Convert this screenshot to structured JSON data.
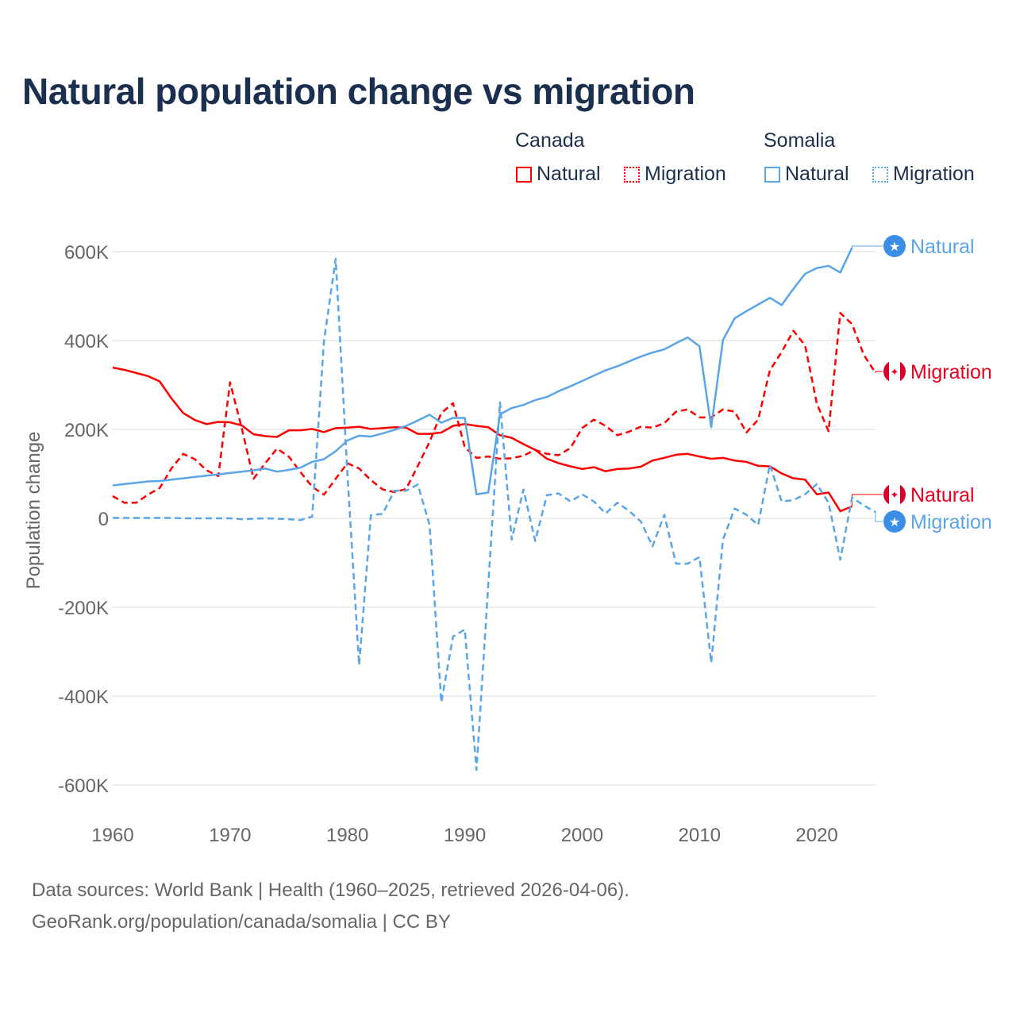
{
  "title": "Natural population change vs migration",
  "legend": {
    "groups": [
      {
        "name": "Canada",
        "items": [
          "Natural",
          "Migration"
        ]
      },
      {
        "name": "Somalia",
        "items": [
          "Natural",
          "Migration"
        ]
      }
    ]
  },
  "footer": {
    "line1": "Data sources: World Bank | Health (1960–2025, retrieved 2026-04-06).",
    "line2": "GeoRank.org/population/canada/somalia | CC BY"
  },
  "colors": {
    "canada": "#ff0000",
    "somalia": "#5aa5e8",
    "canada_flag": "#d80027",
    "somalia_flag": "#3a8ee6",
    "title": "#1b2f4e"
  },
  "chart_data": {
    "type": "line",
    "title": "Natural population change vs migration",
    "xlabel": "",
    "ylabel": "Population change",
    "xlim": [
      1960,
      2025
    ],
    "ylim": [
      -600000,
      600000
    ],
    "x_ticks": [
      "1960",
      "1970",
      "1980",
      "1990",
      "2000",
      "2010",
      "2020"
    ],
    "y_ticks": [
      "600K",
      "400K",
      "200K",
      "0",
      "-200K",
      "-400K",
      "-600K"
    ],
    "grid": true,
    "units": "thousands",
    "series": [
      {
        "name": "Natural",
        "country": "Canada",
        "end_label": "Natural",
        "style": "solid",
        "color": "#ff0000",
        "start_year": 1960,
        "values": [
          339,
          334,
          327,
          320,
          308,
          270,
          237,
          221,
          212,
          217,
          216,
          209,
          189,
          185,
          183,
          198,
          198,
          201,
          194,
          203,
          204,
          206,
          201,
          203,
          205,
          204,
          190,
          190,
          193,
          208,
          212,
          208,
          205,
          187,
          181,
          167,
          154,
          134,
          124,
          117,
          111,
          115,
          106,
          111,
          112,
          116,
          130,
          136,
          143,
          145,
          139,
          134,
          136,
          130,
          127,
          118,
          117,
          101,
          90,
          87,
          54,
          58,
          16,
          27
        ]
      },
      {
        "name": "Migration",
        "country": "Canada",
        "end_label": "Migration",
        "style": "dashed",
        "color": "#ff0000",
        "start_year": 1960,
        "values": [
          50,
          35,
          35,
          53,
          68,
          112,
          145,
          133,
          108,
          95,
          306,
          202,
          89,
          124,
          157,
          139,
          104,
          71,
          53,
          89,
          124,
          112,
          86,
          65,
          59,
          66,
          118,
          172,
          237,
          259,
          160,
          136,
          139,
          134,
          135,
          141,
          154,
          145,
          142,
          158,
          203,
          222,
          208,
          187,
          195,
          206,
          204,
          214,
          240,
          245,
          227,
          227,
          245,
          240,
          193,
          222,
          333,
          374,
          422,
          389,
          258,
          196,
          462,
          437,
          368,
          327
        ]
      },
      {
        "name": "Natural",
        "country": "Somalia",
        "end_label": "Natural",
        "style": "solid",
        "color": "#5aa5e8",
        "start_year": 1960,
        "values": [
          74,
          77,
          80,
          83,
          84,
          87,
          90,
          93,
          96,
          99,
          102,
          105,
          108,
          112,
          105,
          109,
          114,
          127,
          133,
          151,
          175,
          186,
          184,
          191,
          199,
          208,
          220,
          233,
          215,
          226,
          226,
          54,
          58,
          234,
          248,
          255,
          266,
          273,
          286,
          297,
          309,
          321,
          333,
          342,
          353,
          364,
          373,
          380,
          394,
          407,
          387,
          205,
          401,
          450,
          466,
          481,
          496,
          480,
          516,
          550,
          563,
          568,
          553,
          609
        ]
      },
      {
        "name": "Migration",
        "country": "Somalia",
        "end_label": "Migration",
        "style": "dashed",
        "color": "#5aa5e8",
        "start_year": 1960,
        "values": [
          1,
          1,
          1,
          1,
          1,
          1,
          0,
          0,
          0,
          0,
          0,
          -2,
          -1,
          0,
          -1,
          -2,
          -4,
          4,
          398,
          584,
          100,
          -330,
          7,
          10,
          62,
          62,
          76,
          -15,
          -414,
          -266,
          -250,
          -566,
          -150,
          261,
          -48,
          65,
          -51,
          52,
          56,
          38,
          54,
          38,
          11,
          35,
          17,
          -7,
          -63,
          8,
          -102,
          -102,
          -87,
          -325,
          -48,
          22,
          8,
          -15,
          121,
          38,
          41,
          54,
          77,
          35,
          -93,
          47,
          29,
          14
        ]
      }
    ]
  }
}
